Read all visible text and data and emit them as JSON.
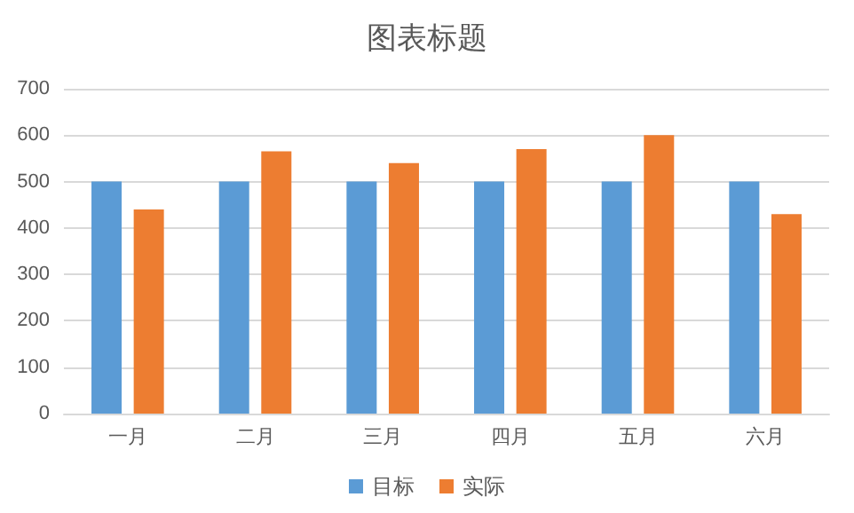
{
  "chart_data": {
    "type": "bar",
    "title": "图表标题",
    "categories": [
      "一月",
      "二月",
      "三月",
      "四月",
      "五月",
      "六月"
    ],
    "series": [
      {
        "name": "目标",
        "color": "#5b9bd5",
        "values": [
          500,
          500,
          500,
          500,
          500,
          500
        ]
      },
      {
        "name": "实际",
        "color": "#ed7d31",
        "values": [
          440,
          565,
          540,
          570,
          600,
          430
        ]
      }
    ],
    "ylim": [
      0,
      700
    ],
    "yticks": [
      0,
      100,
      200,
      300,
      400,
      500,
      600,
      700
    ],
    "grid": "y",
    "legend": "bottom"
  }
}
